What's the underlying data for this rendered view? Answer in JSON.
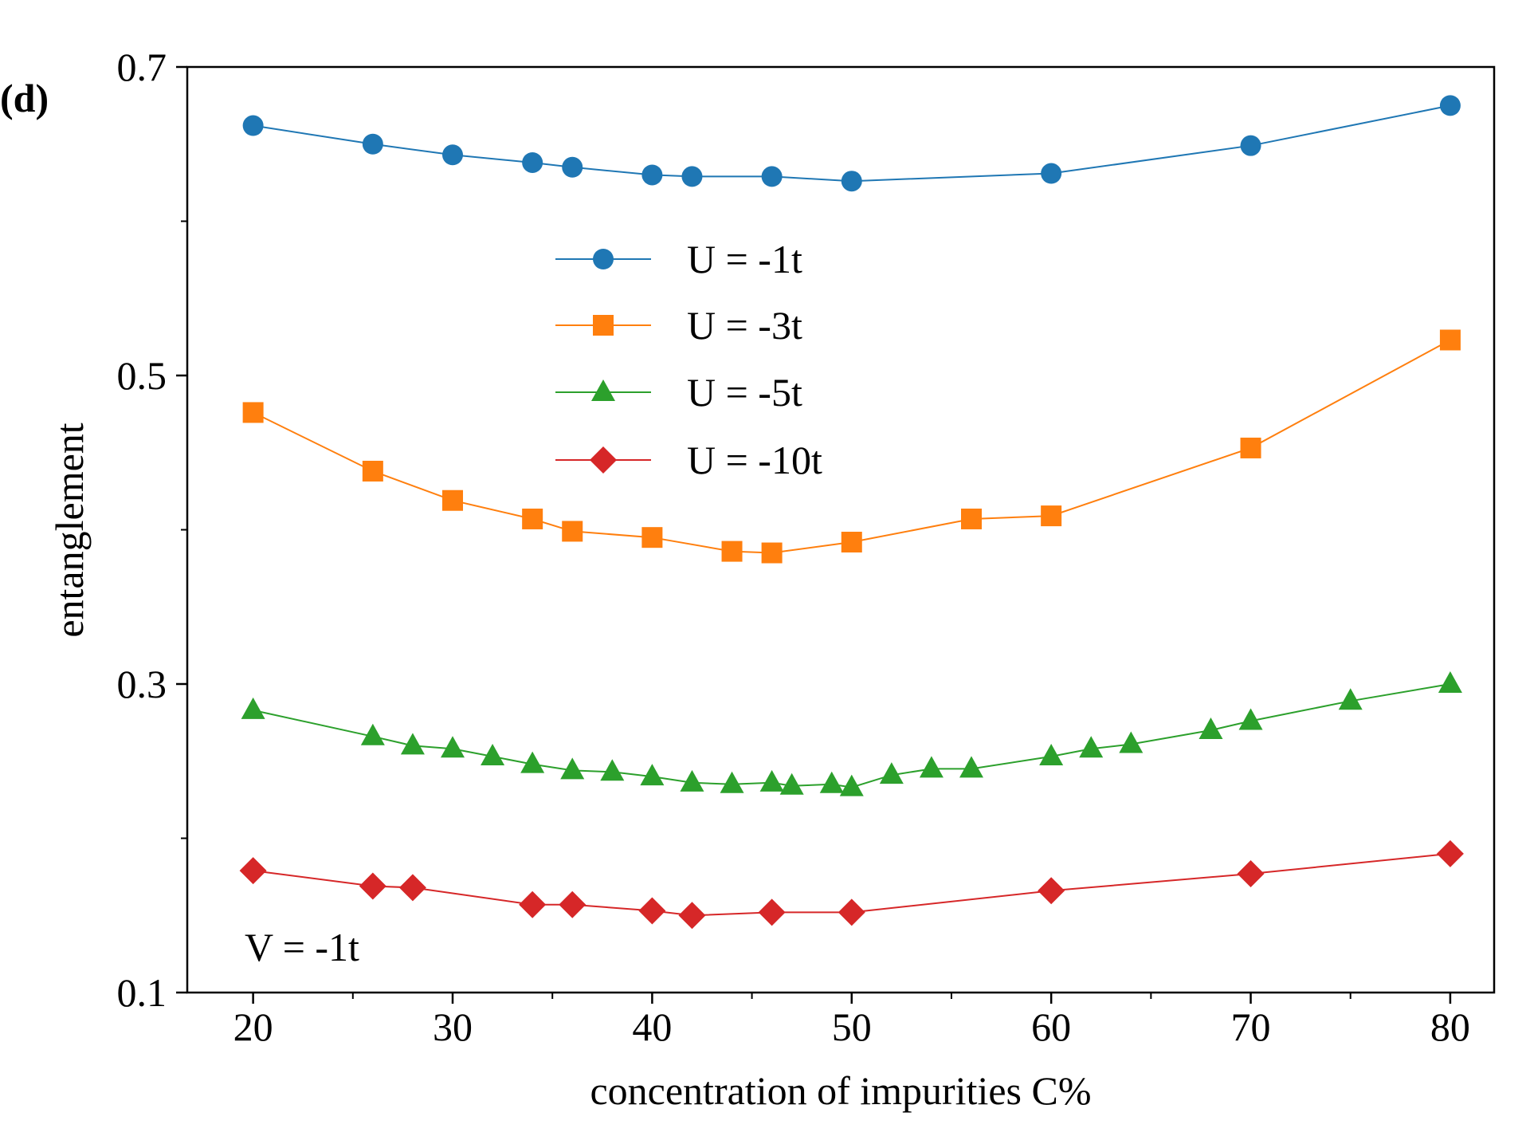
{
  "chart_data": {
    "type": "line",
    "panel_label": "(d)",
    "title": "",
    "xlabel": "concentration of impurities C%",
    "ylabel": "entanglement",
    "xlim": [
      16.7,
      82.2
    ],
    "ylim": [
      0.1,
      0.7
    ],
    "xticks": [
      20,
      30,
      40,
      50,
      60,
      70,
      80
    ],
    "xminor": [
      25,
      35,
      45,
      55,
      65,
      75
    ],
    "yticks": [
      0.1,
      0.3,
      0.5,
      0.7
    ],
    "yminor": [
      0.2,
      0.4,
      0.6
    ],
    "legend_position": "upper-center",
    "annotation": "V = -1t",
    "series": [
      {
        "name": "U = -1t",
        "color": "#1f77b4",
        "marker": "circle",
        "x": [
          20,
          26,
          30,
          34,
          36,
          40,
          42,
          46,
          50,
          60,
          70,
          80
        ],
        "y": [
          0.662,
          0.65,
          0.643,
          0.638,
          0.635,
          0.63,
          0.629,
          0.629,
          0.626,
          0.631,
          0.649,
          0.675
        ]
      },
      {
        "name": "U = -3t",
        "color": "#ff7f0e",
        "marker": "square",
        "x": [
          20,
          26,
          30,
          34,
          36,
          40,
          44,
          46,
          50,
          56,
          60,
          70,
          80
        ],
        "y": [
          0.476,
          0.438,
          0.419,
          0.407,
          0.399,
          0.395,
          0.386,
          0.385,
          0.392,
          0.407,
          0.409,
          0.453,
          0.523
        ]
      },
      {
        "name": "U = -5t",
        "color": "#2ca02c",
        "marker": "triangle",
        "x": [
          20,
          26,
          28,
          30,
          32,
          34,
          36,
          38,
          40,
          42,
          44,
          46,
          47,
          49,
          50,
          52,
          54,
          56,
          60,
          62,
          64,
          68,
          70,
          75,
          80
        ],
        "y": [
          0.283,
          0.266,
          0.26,
          0.258,
          0.253,
          0.248,
          0.244,
          0.243,
          0.24,
          0.236,
          0.235,
          0.236,
          0.234,
          0.235,
          0.233,
          0.241,
          0.245,
          0.245,
          0.253,
          0.258,
          0.261,
          0.27,
          0.276,
          0.289,
          0.3
        ]
      },
      {
        "name": "U = -10t",
        "color": "#d62728",
        "marker": "diamond",
        "x": [
          20,
          26,
          28,
          34,
          36,
          40,
          42,
          46,
          50,
          60,
          70,
          80
        ],
        "y": [
          0.179,
          0.169,
          0.168,
          0.157,
          0.157,
          0.153,
          0.15,
          0.152,
          0.152,
          0.166,
          0.177,
          0.19
        ]
      }
    ]
  }
}
